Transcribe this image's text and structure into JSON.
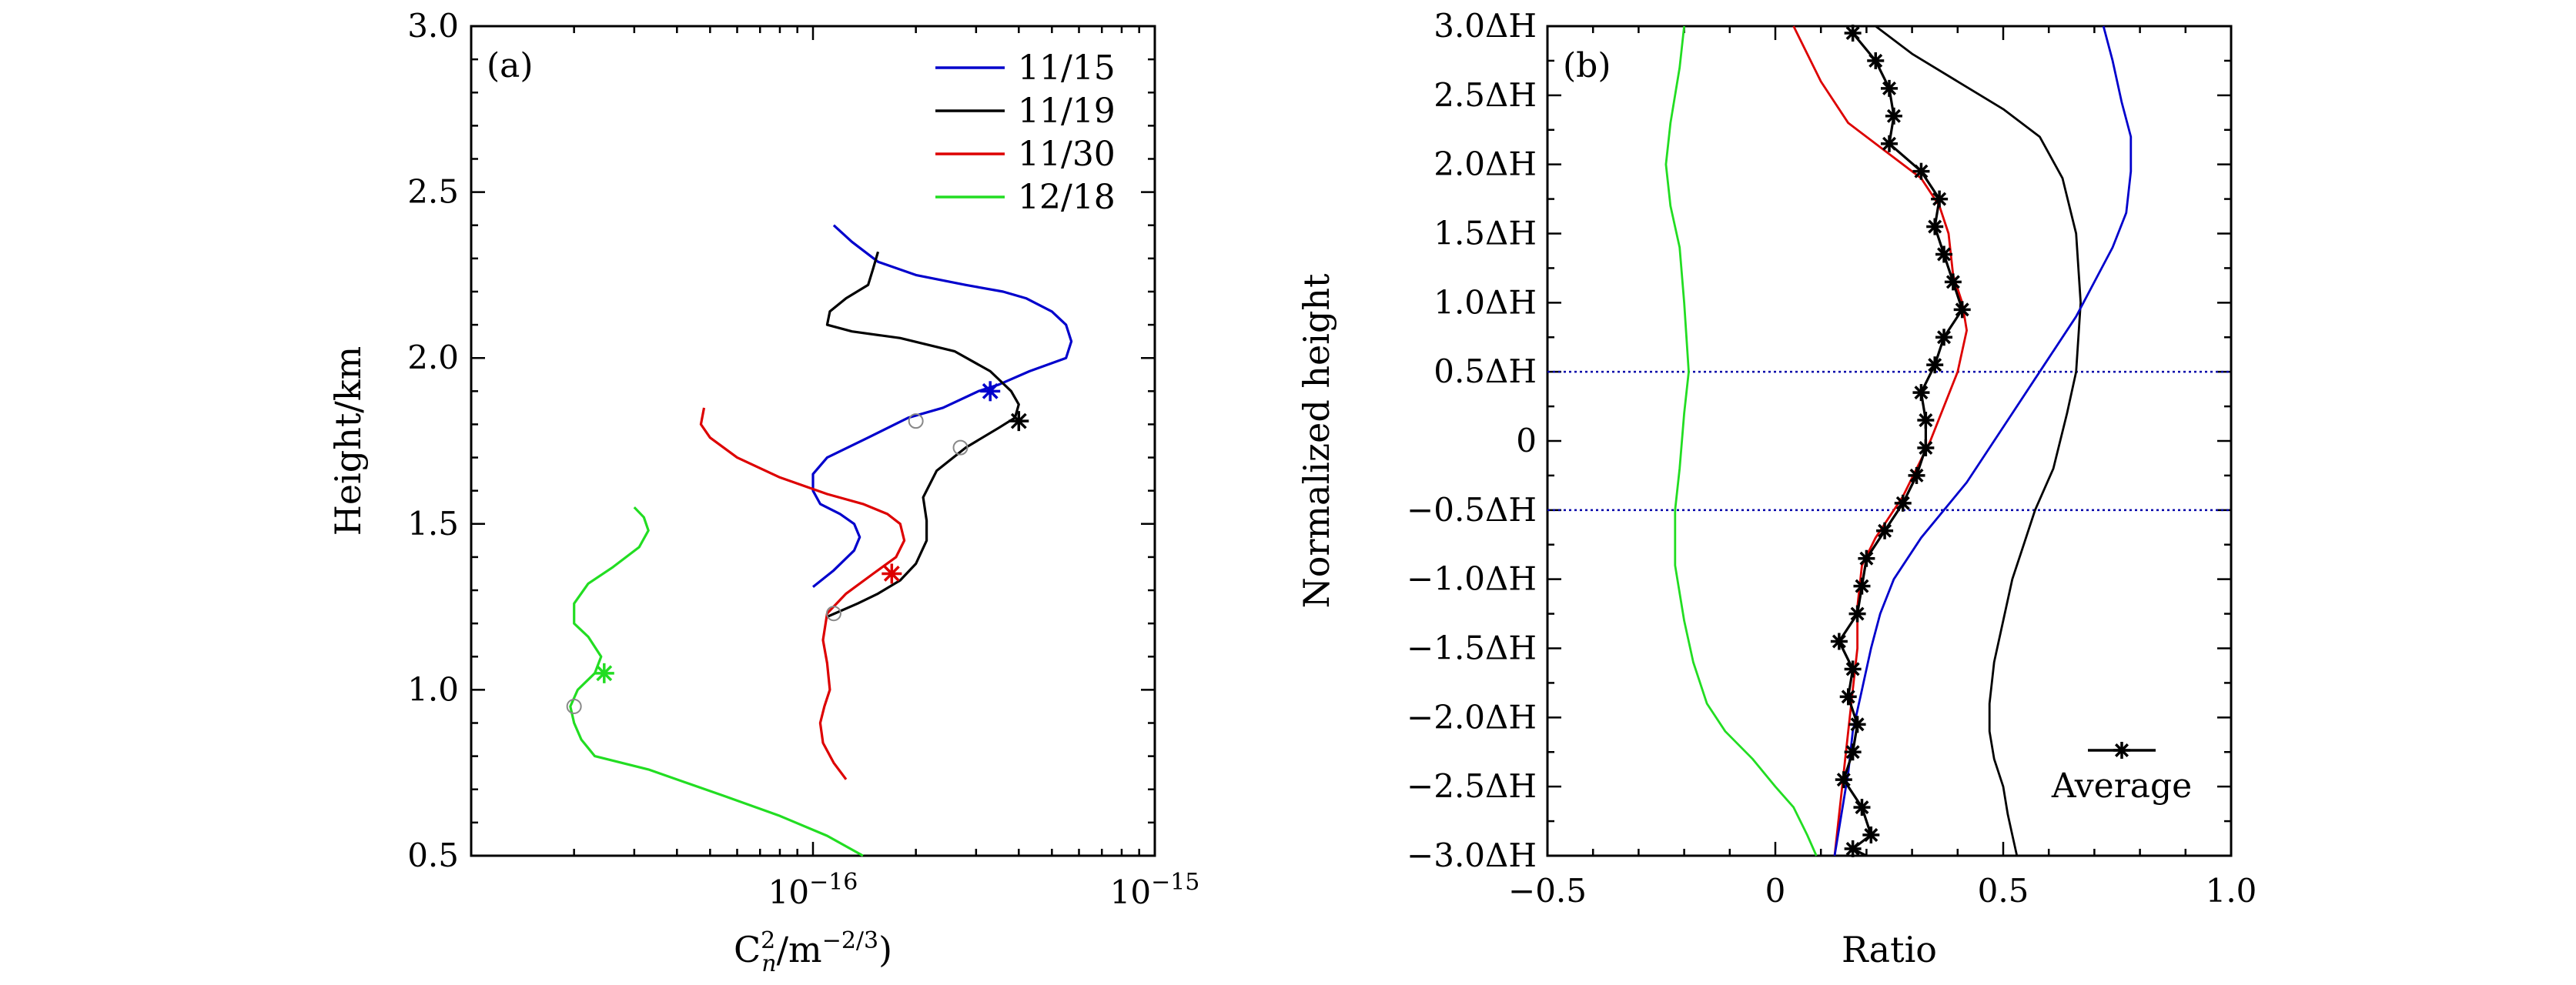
{
  "chart_data": [
    {
      "panel": "(a)",
      "type": "line",
      "xlabel": "C",
      "xlabel_sub": "n",
      "xlabel_sup": "2",
      "xlabel_unit": "/m",
      "xlabel_unit_sup": "−2/3",
      "xlabel_close": ")",
      "ylabel": "Height/km",
      "xscale": "log",
      "xlim": [
        1e-17,
        1e-15
      ],
      "ylim": [
        0.5,
        3.0
      ],
      "x_tick_labels": [
        {
          "value": 1e-16,
          "base": "10",
          "exp": "−16"
        },
        {
          "value": 1e-15,
          "base": "10",
          "exp": "−15"
        }
      ],
      "y_tick_labels": [
        "0.5",
        "1.0",
        "1.5",
        "2.0",
        "2.5",
        "3.0"
      ],
      "legend_position": "top-right",
      "series": [
        {
          "name": "11/15",
          "color": "#0000cc",
          "x": [
            1.15e-16,
            1.3e-16,
            1.55e-16,
            2e-16,
            2.8e-16,
            3.6e-16,
            4.2e-16,
            5e-16,
            5.5e-16,
            5.7e-16,
            5.5e-16,
            4.3e-16,
            3.5e-16,
            3.05e-16,
            2.4e-16,
            1.9e-16,
            1.45e-16,
            1.1e-16,
            1e-16,
            1e-16,
            1.05e-16,
            1.2e-16,
            1.32e-16,
            1.37e-16,
            1.32e-16,
            1.15e-16,
            1e-16
          ],
          "y": [
            2.4,
            2.35,
            2.29,
            2.25,
            2.22,
            2.2,
            2.18,
            2.14,
            2.1,
            2.05,
            2.0,
            1.96,
            1.92,
            1.9,
            1.85,
            1.82,
            1.76,
            1.7,
            1.65,
            1.6,
            1.56,
            1.53,
            1.5,
            1.46,
            1.42,
            1.36,
            1.31
          ],
          "marker_star": [
            3.3e-16,
            1.9
          ],
          "marker_circle": [
            2e-16,
            1.81
          ]
        },
        {
          "name": "11/19",
          "color": "#000000",
          "x": [
            1.55e-16,
            1.5e-16,
            1.45e-16,
            1.25e-16,
            1.12e-16,
            1.1e-16,
            1.3e-16,
            1.8e-16,
            2.6e-16,
            3.3e-16,
            3.8e-16,
            4e-16,
            3.9e-16,
            3.5e-16,
            2.8e-16,
            2.3e-16,
            2.1e-16,
            2.15e-16,
            2.15e-16,
            2e-16,
            1.8e-16,
            1.55e-16,
            1.35e-16,
            1.1e-16
          ],
          "y": [
            2.32,
            2.27,
            2.22,
            2.18,
            2.14,
            2.1,
            2.08,
            2.06,
            2.02,
            1.96,
            1.9,
            1.86,
            1.82,
            1.79,
            1.73,
            1.66,
            1.58,
            1.51,
            1.45,
            1.38,
            1.33,
            1.29,
            1.26,
            1.22
          ],
          "marker_star": [
            4e-16,
            1.81
          ],
          "marker_circle": [
            2.7e-16,
            1.73
          ]
        },
        {
          "name": "11/30",
          "color": "#dd0000",
          "x": [
            4.8e-17,
            4.7e-17,
            5e-17,
            6e-17,
            8e-17,
            1.1e-16,
            1.4e-16,
            1.65e-16,
            1.8e-16,
            1.85e-16,
            1.75e-16,
            1.5e-16,
            1.25e-16,
            1.1e-16,
            1.07e-16,
            1.1e-16,
            1.12e-16,
            1.08e-16,
            1.05e-16,
            1.07e-16,
            1.15e-16,
            1.25e-16
          ],
          "y": [
            1.85,
            1.8,
            1.76,
            1.7,
            1.64,
            1.59,
            1.56,
            1.53,
            1.5,
            1.45,
            1.4,
            1.35,
            1.29,
            1.23,
            1.15,
            1.08,
            1.0,
            0.95,
            0.9,
            0.84,
            0.78,
            0.73
          ],
          "marker_star": [
            1.7e-16,
            1.35
          ],
          "marker_circle": [
            1.15e-16,
            1.23
          ]
        },
        {
          "name": "12/18",
          "color": "#22dd22",
          "x": [
            3e-17,
            3.2e-17,
            3.3e-17,
            3.1e-17,
            2.6e-17,
            2.2e-17,
            2e-17,
            2e-17,
            2.2e-17,
            2.4e-17,
            2.3e-17,
            2.05e-17,
            1.95e-17,
            2e-17,
            2.1e-17,
            2.3e-17,
            3.3e-17,
            5.5e-17,
            8e-17,
            1.1e-16,
            1.4e-16
          ],
          "y": [
            1.55,
            1.52,
            1.48,
            1.43,
            1.37,
            1.32,
            1.26,
            1.2,
            1.16,
            1.1,
            1.05,
            1.0,
            0.95,
            0.9,
            0.85,
            0.8,
            0.76,
            0.68,
            0.62,
            0.56,
            0.5
          ],
          "marker_star": [
            2.45e-17,
            1.05
          ],
          "marker_circle": [
            2e-17,
            0.95
          ]
        }
      ]
    },
    {
      "panel": "(b)",
      "type": "line",
      "xlabel": "Ratio",
      "ylabel": "Normalized height",
      "xlim": [
        -0.5,
        1.0
      ],
      "ylim": [
        -3.0,
        3.0
      ],
      "x_tick_labels": [
        "−0.5",
        "0",
        "0.5",
        "1.0"
      ],
      "y_tick_labels": [
        "−3.0ΔH",
        "−2.5ΔH",
        "−2.0ΔH",
        "−1.5ΔH",
        "−1.0ΔH",
        "−0.5ΔH",
        "0",
        "0.5ΔH",
        "1.0ΔH",
        "1.5ΔH",
        "2.0ΔH",
        "2.5ΔH",
        "3.0ΔH"
      ],
      "hlines": [
        0.5,
        -0.5
      ],
      "hline_color": "#0000aa",
      "legend_position": "bottom-right",
      "legend_label": "Average",
      "series": [
        {
          "color": "#22dd22",
          "x": [
            -0.2,
            -0.21,
            -0.23,
            -0.24,
            -0.23,
            -0.21,
            -0.2,
            -0.19,
            -0.2,
            -0.21,
            -0.22,
            -0.22,
            -0.2,
            -0.18,
            -0.15,
            -0.11,
            -0.05,
            0.0,
            0.04,
            0.07,
            0.09
          ],
          "y": [
            3.0,
            2.7,
            2.3,
            2.0,
            1.7,
            1.4,
            1.0,
            0.5,
            0.2,
            -0.2,
            -0.5,
            -0.9,
            -1.3,
            -1.6,
            -1.9,
            -2.1,
            -2.3,
            -2.5,
            -2.65,
            -2.85,
            -3.0
          ]
        },
        {
          "color": "#dd0000",
          "x": [
            0.04,
            0.07,
            0.1,
            0.16,
            0.24,
            0.32,
            0.36,
            0.38,
            0.39,
            0.41,
            0.42,
            0.4,
            0.34,
            0.28,
            0.22,
            0.19,
            0.18,
            0.18,
            0.17,
            0.16,
            0.15,
            0.14,
            0.13
          ],
          "y": [
            3.0,
            2.8,
            2.6,
            2.3,
            2.1,
            1.9,
            1.7,
            1.5,
            1.2,
            1.0,
            0.8,
            0.5,
            0.0,
            -0.4,
            -0.7,
            -0.9,
            -1.2,
            -1.5,
            -1.8,
            -2.1,
            -2.4,
            -2.7,
            -3.0
          ]
        },
        {
          "color": "#000000",
          "x": [
            0.22,
            0.3,
            0.4,
            0.5,
            0.58,
            0.63,
            0.66,
            0.67,
            0.66,
            0.64,
            0.61,
            0.57,
            0.54,
            0.52,
            0.5,
            0.48,
            0.47,
            0.47,
            0.48,
            0.5,
            0.51,
            0.52,
            0.53
          ],
          "y": [
            3.0,
            2.8,
            2.6,
            2.4,
            2.2,
            1.9,
            1.5,
            1.0,
            0.5,
            0.2,
            -0.2,
            -0.5,
            -0.8,
            -1.0,
            -1.3,
            -1.6,
            -1.9,
            -2.1,
            -2.3,
            -2.5,
            -2.7,
            -2.85,
            -3.0
          ]
        },
        {
          "color": "#0000cc",
          "x": [
            0.72,
            0.74,
            0.76,
            0.78,
            0.78,
            0.77,
            0.74,
            0.7,
            0.66,
            0.6,
            0.52,
            0.42,
            0.32,
            0.26,
            0.23,
            0.21,
            0.19,
            0.17,
            0.16,
            0.15,
            0.14,
            0.13
          ],
          "y": [
            3.0,
            2.75,
            2.45,
            2.2,
            1.95,
            1.65,
            1.4,
            1.15,
            0.9,
            0.6,
            0.2,
            -0.3,
            -0.7,
            -1.0,
            -1.25,
            -1.5,
            -1.8,
            -2.1,
            -2.4,
            -2.6,
            -2.8,
            -3.0
          ]
        },
        {
          "name": "Average",
          "color": "#000000",
          "markers": true,
          "x": [
            0.17,
            0.22,
            0.25,
            0.26,
            0.25,
            0.32,
            0.36,
            0.35,
            0.37,
            0.39,
            0.41,
            0.37,
            0.35,
            0.32,
            0.33,
            0.33,
            0.31,
            0.28,
            0.24,
            0.2,
            0.19,
            0.18,
            0.14,
            0.17,
            0.16,
            0.18,
            0.17,
            0.15,
            0.19,
            0.21,
            0.17,
            0.2
          ],
          "y": [
            2.95,
            2.75,
            2.55,
            2.35,
            2.15,
            1.95,
            1.75,
            1.55,
            1.35,
            1.15,
            0.95,
            0.75,
            0.55,
            0.35,
            0.15,
            -0.05,
            -0.25,
            -0.45,
            -0.65,
            -0.85,
            -1.05,
            -1.25,
            -1.45,
            -1.65,
            -1.85,
            -2.05,
            -2.25,
            -2.45,
            -2.65,
            -2.85,
            -2.95,
            -3.0
          ]
        }
      ]
    }
  ]
}
